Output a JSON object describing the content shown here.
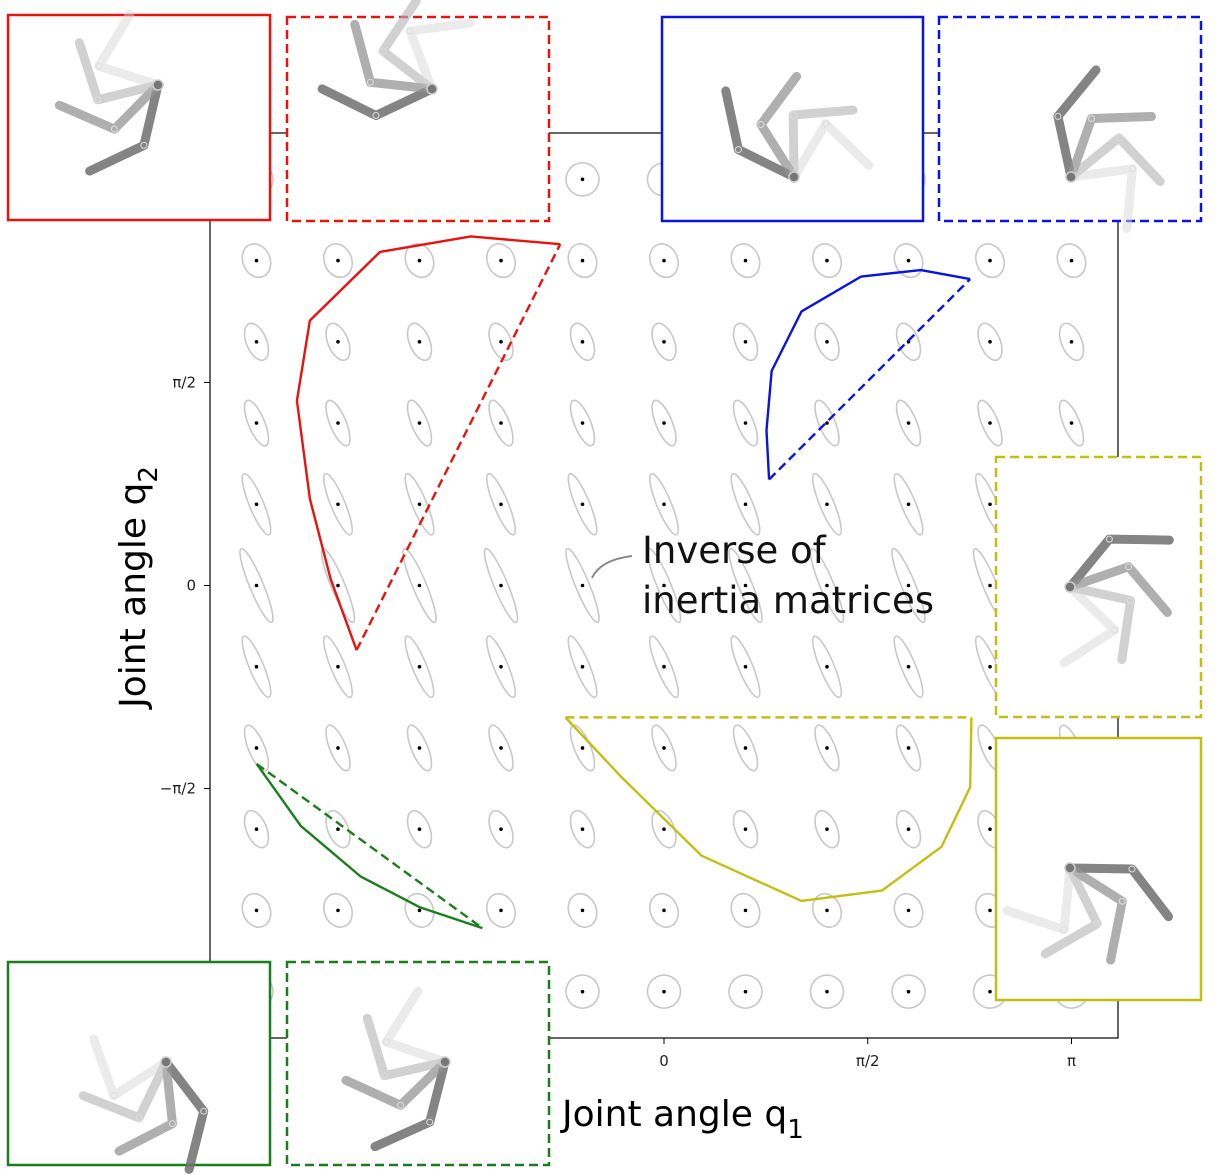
{
  "chart_data": {
    "type": "ellipse-field",
    "x_label": {
      "text": "Joint angle q",
      "subscript": "1"
    },
    "y_label": {
      "text": "Joint angle q",
      "subscript": "2"
    },
    "annotation": [
      "Inverse of",
      "inertia matrices"
    ],
    "xlim": [
      -3.5,
      3.5
    ],
    "ylim": [
      -3.5,
      3.5
    ],
    "xticks": [
      0,
      {
        "value": 1.5708,
        "label": "π/2"
      },
      {
        "value": 3.1416,
        "label": "π"
      }
    ],
    "yticks": [
      {
        "value": -1.5708,
        "label": "−π/2"
      },
      0,
      {
        "value": 1.5708,
        "label": "π/2"
      }
    ],
    "grid_x": [
      -3.1416,
      -2.5133,
      -1.885,
      -1.2566,
      -0.6283,
      0,
      0.6283,
      1.2566,
      1.885,
      2.5133,
      3.1416
    ],
    "grid_y": [
      -3.1416,
      -2.5133,
      -1.885,
      -1.2566,
      -0.6283,
      0,
      0.6283,
      1.2566,
      1.885,
      2.5133,
      3.1416
    ],
    "ellipse_color": "#c8c8c8",
    "series": [
      {
        "color": "#e8130f",
        "style": "solid",
        "x": [
          -0.8,
          -1.49,
          -2.19,
          -2.73,
          -2.83,
          -2.73,
          -2.57,
          -2.37
        ],
        "y": [
          2.64,
          2.7,
          2.58,
          2.05,
          1.43,
          0.67,
          0.05,
          -0.5
        ]
      },
      {
        "color": "#e8130f",
        "style": "dashed",
        "x": [
          -2.37,
          -0.8
        ],
        "y": [
          -0.5,
          2.64
        ]
      },
      {
        "color": "#0a14e0",
        "style": "solid",
        "x": [
          2.36,
          1.98,
          1.52,
          1.06,
          0.83,
          0.79,
          0.81
        ],
        "y": [
          2.37,
          2.44,
          2.39,
          2.12,
          1.66,
          1.2,
          0.82
        ]
      },
      {
        "color": "#0a14e0",
        "style": "dashed",
        "x": [
          0.81,
          2.36
        ],
        "y": [
          0.82,
          2.37
        ]
      },
      {
        "color": "#1a7f1a",
        "style": "solid",
        "x": [
          -3.14,
          -2.8,
          -2.34,
          -1.88,
          -1.4
        ],
        "y": [
          -1.38,
          -1.86,
          -2.25,
          -2.49,
          -2.65
        ]
      },
      {
        "color": "#1a7f1a",
        "style": "dashed",
        "x": [
          -3.14,
          -1.4
        ],
        "y": [
          -1.38,
          -2.65
        ]
      },
      {
        "color": "#c2bf12",
        "style": "solid",
        "x": [
          -0.76,
          -0.33,
          0.29,
          1.06,
          1.68,
          2.14,
          2.36,
          2.37
        ],
        "y": [
          -1.02,
          -1.48,
          -2.09,
          -2.44,
          -2.36,
          -2.02,
          -1.56,
          -1.02
        ]
      },
      {
        "color": "#c2bf12",
        "style": "dashed",
        "x": [
          -0.76,
          2.37
        ],
        "y": [
          -1.02,
          -1.02
        ]
      }
    ]
  }
}
